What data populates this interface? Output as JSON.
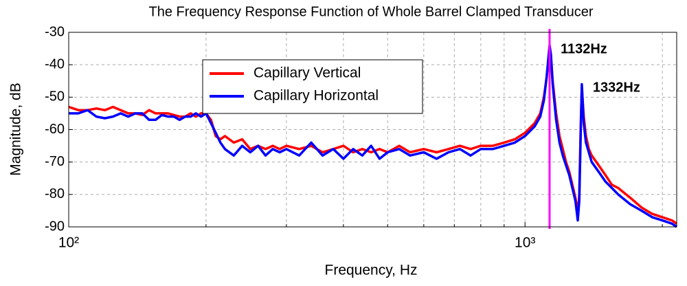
{
  "chart_data": {
    "type": "line",
    "title": "The Frequency Response Function of Whole Barrel Clamped Transducer",
    "x_label": "Frequency, Hz",
    "y_label": "Magnitude, dB",
    "x_scale": "log",
    "grid": true,
    "legend": "upper center",
    "xlim": [
      100,
      2150
    ],
    "ylim": [
      -90,
      -30
    ],
    "xticks": [
      {
        "value": 100,
        "label": "10²"
      },
      {
        "value": 1000,
        "label": "10³"
      }
    ],
    "x_minor_ticks": [
      200,
      300,
      400,
      500,
      600,
      700,
      800,
      900,
      2000
    ],
    "yticks": [
      -90,
      -80,
      -70,
      -60,
      -50,
      -40,
      -30
    ],
    "x": [
      100,
      105,
      110,
      115,
      120,
      125,
      130,
      135,
      140,
      145,
      150,
      155,
      160,
      165,
      170,
      175,
      180,
      185,
      190,
      195,
      200,
      205,
      210,
      215,
      220,
      230,
      240,
      250,
      260,
      270,
      280,
      290,
      300,
      320,
      340,
      360,
      380,
      400,
      420,
      440,
      460,
      480,
      500,
      530,
      560,
      600,
      640,
      680,
      720,
      760,
      800,
      850,
      900,
      950,
      1000,
      1050,
      1080,
      1100,
      1115,
      1125,
      1132,
      1140,
      1150,
      1170,
      1190,
      1210,
      1230,
      1250,
      1270,
      1290,
      1305,
      1315,
      1325,
      1332,
      1345,
      1360,
      1380,
      1400,
      1450,
      1500,
      1550,
      1600,
      1700,
      1800,
      1900,
      2000,
      2100,
      2150
    ],
    "series": [
      {
        "name": "Capillary Vertical",
        "color": "#ff0000",
        "values": [
          -53,
          -54,
          -54,
          -53.5,
          -54,
          -53,
          -54,
          -55,
          -55,
          -55.5,
          -54,
          -55,
          -55,
          -55,
          -55.5,
          -56,
          -56,
          -55,
          -56,
          -55,
          -55,
          -57,
          -62,
          -63,
          -62,
          -64,
          -63,
          -66,
          -65,
          -66,
          -65,
          -66,
          -65,
          -66,
          -65,
          -67,
          -66,
          -65,
          -67,
          -66,
          -67,
          -66,
          -67,
          -65,
          -67,
          -66,
          -67,
          -66,
          -65,
          -66,
          -65,
          -65,
          -64,
          -63,
          -61,
          -58,
          -55,
          -50,
          -44,
          -39,
          -35,
          -38,
          -45,
          -55,
          -62,
          -66,
          -70,
          -73,
          -77,
          -81,
          -86,
          -80,
          -58,
          -47,
          -56,
          -62,
          -66,
          -68,
          -71,
          -74,
          -77,
          -78,
          -81,
          -84,
          -86,
          -87,
          -88,
          -89
        ]
      },
      {
        "name": "Capillary Horizontal",
        "color": "#0000ff",
        "values": [
          -55,
          -55,
          -54,
          -56,
          -56.5,
          -56,
          -55,
          -56,
          -55,
          -55,
          -57,
          -57,
          -55.5,
          -56,
          -56,
          -57,
          -56,
          -56,
          -55,
          -56,
          -55,
          -58,
          -61,
          -64,
          -66,
          -68,
          -65,
          -67,
          -65,
          -68,
          -66,
          -67,
          -66,
          -68,
          -64,
          -68,
          -66,
          -69,
          -66,
          -68,
          -65,
          -69,
          -67,
          -66,
          -68,
          -67,
          -69,
          -67,
          -66,
          -68,
          -66,
          -66,
          -65,
          -64,
          -62,
          -59,
          -56,
          -51,
          -44,
          -38,
          -34,
          -37,
          -46,
          -57,
          -64,
          -68,
          -71,
          -74,
          -78,
          -82,
          -88,
          -82,
          -60,
          -46,
          -58,
          -64,
          -67,
          -70,
          -73,
          -76,
          -78,
          -80,
          -83,
          -85,
          -87,
          -88,
          -89,
          -90
        ]
      }
    ],
    "annotations": [
      {
        "text": "1132Hz",
        "x": 1132,
        "color": "#ff00ff",
        "line": true
      },
      {
        "text": "1332Hz",
        "x": 1332,
        "color": "#22dd44"
      }
    ]
  }
}
